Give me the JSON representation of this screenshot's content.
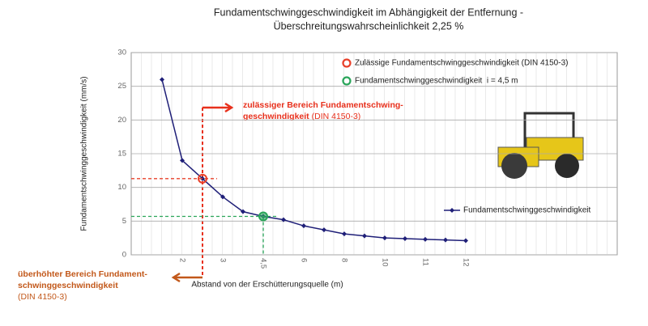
{
  "chart_data": {
    "type": "line",
    "title": [
      "Fundamentschwinggeschwindigkeit im Abhängigkeit der Entfernung -",
      "Überschreitungswahrscheinlichkeit 2,25 %"
    ],
    "x_label": "Abstand von der Erschütterungsquelle (m)",
    "y_label": "Fundamentschwinggeschwindigkeit (mm/s)",
    "categories": [
      null,
      "2",
      null,
      "3",
      null,
      "4,5",
      null,
      "6",
      null,
      "8",
      null,
      "10",
      null,
      "11",
      null,
      "12"
    ],
    "series": [
      {
        "name": "Fundamentschwinggeschwindigkeit",
        "color": "#1f1f78",
        "marker": "diamond",
        "values": [
          26,
          14,
          11.3,
          8.6,
          6.4,
          5.7,
          5.2,
          4.3,
          3.7,
          3.1,
          2.8,
          2.5,
          2.4,
          2.3,
          2.2,
          2.1
        ]
      },
      {
        "name": "Zulässige Fundamentschwinggeschwindigkeit (DIN 4150-3)",
        "color": "#e8402a",
        "marker": "circle",
        "values": [
          null,
          null,
          11.3,
          null,
          null,
          null,
          null,
          null,
          null,
          null,
          null,
          null,
          null,
          null,
          null,
          null
        ]
      },
      {
        "name": "Fundamentschwinggeschwindigkeit  i = 4,5 m",
        "color": "#2aa55a",
        "marker": "circle",
        "values": [
          null,
          null,
          null,
          null,
          null,
          5.7,
          null,
          null,
          null,
          null,
          null,
          null,
          null,
          null,
          null,
          null
        ]
      }
    ],
    "ylim": [
      0,
      30
    ],
    "yticks": [
      0,
      5,
      10,
      15,
      20,
      25,
      30
    ],
    "grid": true,
    "annotations": {
      "allowed": [
        "zulässiger Bereich Fundamentschwing-",
        "geschwindigkeit",
        "(DIN 4150-3)"
      ],
      "excessive": [
        "überhöhter Bereich Fundament-",
        "schwinggeschwindigkeit",
        "(DIN 4150-3)"
      ]
    }
  }
}
